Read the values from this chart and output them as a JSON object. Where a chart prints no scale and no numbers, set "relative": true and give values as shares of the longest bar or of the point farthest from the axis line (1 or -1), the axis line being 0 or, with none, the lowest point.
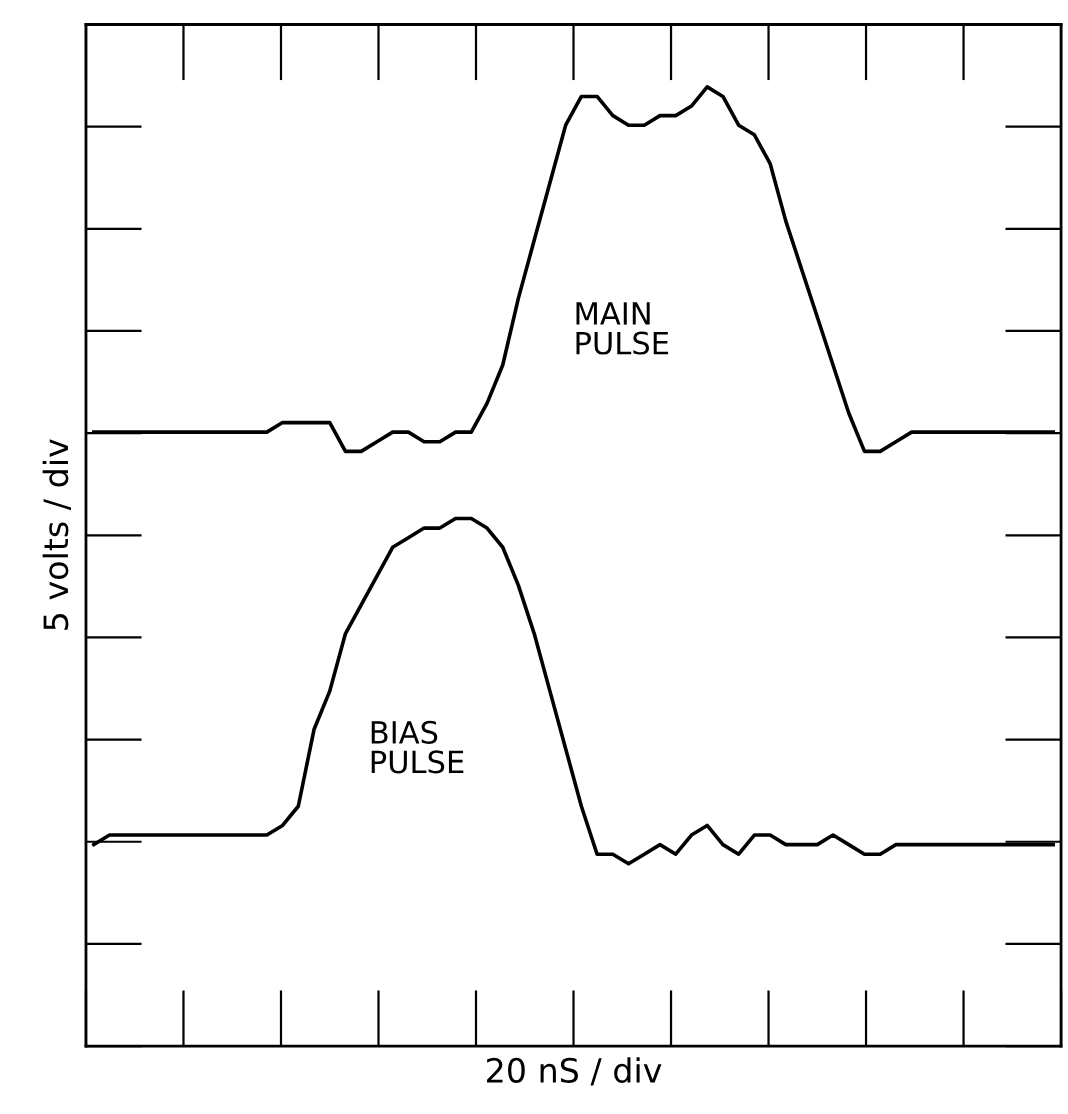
{
  "chart_data": {
    "type": "line",
    "relative": true,
    "xlabel": "20 nS / div",
    "ylabel": "5 volts / div",
    "tick_labels": false,
    "grid": false,
    "legend": false,
    "categories": [
      null,
      null,
      null,
      null,
      null,
      null,
      null,
      null,
      null,
      null,
      null,
      null,
      null,
      null,
      null,
      null,
      null,
      null,
      null,
      null,
      null,
      null,
      null,
      null,
      null,
      null,
      null,
      null,
      null,
      null,
      null,
      null,
      null,
      null,
      null,
      null,
      null,
      null,
      null,
      null,
      null,
      null,
      null,
      null,
      null,
      null,
      null,
      null,
      null,
      null,
      null,
      null,
      null,
      null,
      null,
      null,
      null,
      null,
      null,
      null,
      null,
      null
    ],
    "series": [
      {
        "name": "MAIN\nPULSE",
        "color": "#000000",
        "values": [
          0.64,
          0.64,
          0.64,
          0.64,
          0.64,
          0.64,
          0.64,
          0.64,
          0.64,
          0.64,
          0.64,
          0.64,
          0.65,
          0.65,
          0.65,
          0.65,
          0.62,
          0.62,
          0.63,
          0.64,
          0.64,
          0.63,
          0.63,
          0.64,
          0.64,
          0.67,
          0.71,
          0.78,
          0.84,
          0.9,
          0.96,
          0.99,
          0.99,
          0.97,
          0.96,
          0.96,
          0.97,
          0.97,
          0.98,
          1.0,
          0.99,
          0.96,
          0.95,
          0.92,
          0.86,
          0.81,
          0.76,
          0.71,
          0.66,
          0.62,
          0.62,
          0.63,
          0.64,
          0.64,
          0.64,
          0.64,
          0.64,
          0.64,
          0.64,
          0.64,
          0.64,
          0.64
        ]
      },
      {
        "name": "BIAS\nPULSE",
        "color": "#000000",
        "values": [
          0.21,
          0.22,
          0.22,
          0.22,
          0.22,
          0.22,
          0.22,
          0.22,
          0.22,
          0.22,
          0.22,
          0.22,
          0.23,
          0.25,
          0.33,
          0.37,
          0.43,
          0.46,
          0.49,
          0.52,
          0.53,
          0.54,
          0.54,
          0.55,
          0.55,
          0.54,
          0.52,
          0.48,
          0.43,
          0.37,
          0.31,
          0.25,
          0.2,
          0.2,
          0.19,
          0.2,
          0.21,
          0.2,
          0.22,
          0.23,
          0.21,
          0.2,
          0.22,
          0.22,
          0.21,
          0.21,
          0.21,
          0.22,
          0.21,
          0.2,
          0.2,
          0.21,
          0.21,
          0.21,
          0.21,
          0.21,
          0.21,
          0.21,
          0.21,
          0.21,
          0.21,
          0.21
        ]
      }
    ]
  }
}
